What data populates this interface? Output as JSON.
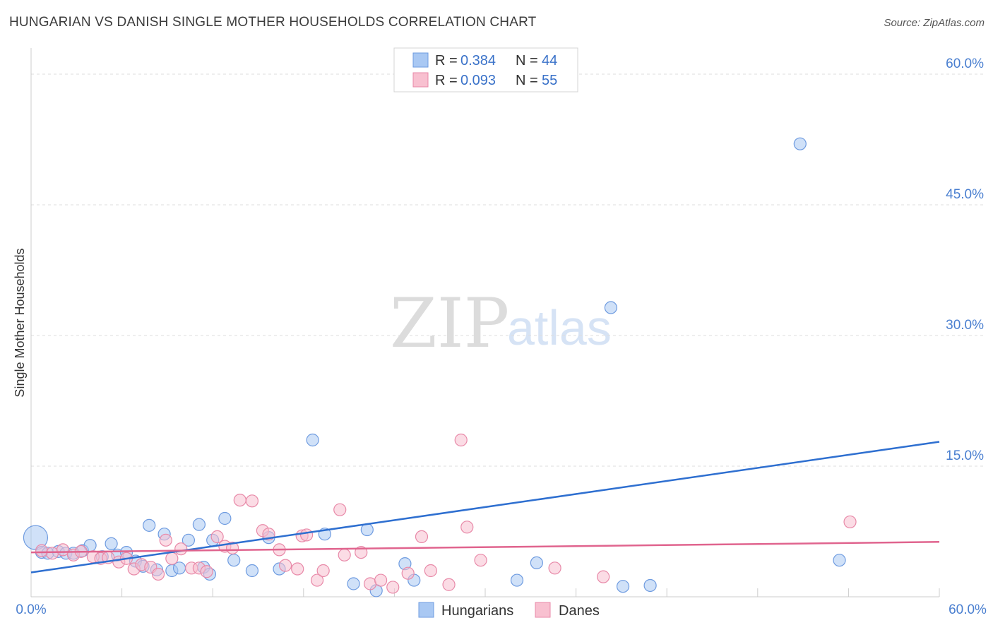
{
  "header": {
    "title": "HUNGARIAN VS DANISH SINGLE MOTHER HOUSEHOLDS CORRELATION CHART",
    "source": "Source: ZipAtlas.com"
  },
  "watermark": {
    "zip": "ZIP",
    "atlas": "atlas"
  },
  "legend_top": {
    "series": [
      {
        "r_label": "R =",
        "r_value": "0.384",
        "n_label": "N =",
        "n_value": "44",
        "color": "#a9c8f3",
        "stroke": "#6e9be0"
      },
      {
        "r_label": "R =",
        "r_value": "0.093",
        "n_label": "N =",
        "n_value": "55",
        "color": "#f8c0d0",
        "stroke": "#e889a8"
      }
    ]
  },
  "legend_bottom": {
    "items": [
      {
        "label": "Hungarians",
        "color": "#a9c8f3",
        "stroke": "#6e9be0"
      },
      {
        "label": "Danes",
        "color": "#f8c0d0",
        "stroke": "#e889a8"
      }
    ]
  },
  "chart_data": {
    "type": "scatter",
    "title": "HUNGARIAN VS DANISH SINGLE MOTHER HOUSEHOLDS CORRELATION CHART",
    "xlabel": "",
    "ylabel": "Single Mother Households",
    "xlim": [
      0,
      60
    ],
    "ylim": [
      0,
      63
    ],
    "x_tick_labels": [
      "0.0%",
      "60.0%"
    ],
    "y_ticks": [
      15,
      30,
      45,
      60
    ],
    "y_tick_labels": [
      "15.0%",
      "30.0%",
      "45.0%",
      "60.0%"
    ],
    "grid": true,
    "legend": "top-center",
    "series": [
      {
        "name": "Hungarians",
        "color": "#a9c8f3",
        "stroke": "#6e9be0",
        "line_color": "#2e6fd0",
        "trend": {
          "x": [
            0,
            60
          ],
          "y": [
            2.8,
            17.8
          ]
        },
        "points": [
          [
            0.3,
            6.8
          ],
          [
            0.7,
            5.1
          ],
          [
            1.1,
            5.0
          ],
          [
            1.8,
            5.2
          ],
          [
            2.3,
            5.0
          ],
          [
            2.8,
            5.0
          ],
          [
            3.4,
            5.3
          ],
          [
            3.9,
            5.9
          ],
          [
            4.7,
            4.6
          ],
          [
            5.3,
            6.1
          ],
          [
            5.7,
            4.8
          ],
          [
            6.3,
            5.1
          ],
          [
            6.9,
            4.1
          ],
          [
            7.4,
            3.5
          ],
          [
            7.8,
            8.2
          ],
          [
            8.3,
            3.1
          ],
          [
            8.8,
            7.2
          ],
          [
            9.3,
            3.0
          ],
          [
            9.8,
            3.3
          ],
          [
            10.4,
            6.5
          ],
          [
            11.1,
            8.3
          ],
          [
            11.4,
            3.4
          ],
          [
            11.8,
            2.6
          ],
          [
            12.0,
            6.5
          ],
          [
            12.8,
            9.0
          ],
          [
            13.4,
            4.2
          ],
          [
            14.6,
            3.0
          ],
          [
            15.7,
            6.8
          ],
          [
            16.4,
            3.2
          ],
          [
            18.6,
            18.0
          ],
          [
            19.4,
            7.2
          ],
          [
            21.3,
            1.5
          ],
          [
            22.2,
            7.7
          ],
          [
            22.8,
            0.7
          ],
          [
            24.7,
            3.8
          ],
          [
            25.3,
            1.9
          ],
          [
            32.1,
            1.9
          ],
          [
            33.4,
            3.9
          ],
          [
            38.3,
            33.2
          ],
          [
            39.1,
            1.2
          ],
          [
            40.9,
            1.3
          ],
          [
            50.8,
            52.0
          ],
          [
            53.4,
            4.2
          ]
        ]
      },
      {
        "name": "Danes",
        "color": "#f8c0d0",
        "stroke": "#e889a8",
        "line_color": "#e0648e",
        "trend": {
          "x": [
            0,
            60
          ],
          "y": [
            5.1,
            6.3
          ]
        },
        "points": [
          [
            0.7,
            5.3
          ],
          [
            1.4,
            5.0
          ],
          [
            2.1,
            5.4
          ],
          [
            2.8,
            4.8
          ],
          [
            3.3,
            5.2
          ],
          [
            4.1,
            4.6
          ],
          [
            4.6,
            4.4
          ],
          [
            5.1,
            4.5
          ],
          [
            5.8,
            4.0
          ],
          [
            6.3,
            4.4
          ],
          [
            6.8,
            3.2
          ],
          [
            7.3,
            3.7
          ],
          [
            7.9,
            3.4
          ],
          [
            8.4,
            2.6
          ],
          [
            8.9,
            6.5
          ],
          [
            9.3,
            4.4
          ],
          [
            9.9,
            5.5
          ],
          [
            10.6,
            3.3
          ],
          [
            11.1,
            3.3
          ],
          [
            11.6,
            2.9
          ],
          [
            12.3,
            6.9
          ],
          [
            12.8,
            5.8
          ],
          [
            13.3,
            5.6
          ],
          [
            13.8,
            11.1
          ],
          [
            14.6,
            11.0
          ],
          [
            15.3,
            7.6
          ],
          [
            15.7,
            7.2
          ],
          [
            16.4,
            5.4
          ],
          [
            16.8,
            3.6
          ],
          [
            17.6,
            3.2
          ],
          [
            17.9,
            7.0
          ],
          [
            18.2,
            7.1
          ],
          [
            18.9,
            1.9
          ],
          [
            19.3,
            3.0
          ],
          [
            20.4,
            10.0
          ],
          [
            20.7,
            4.8
          ],
          [
            21.8,
            5.1
          ],
          [
            22.4,
            1.5
          ],
          [
            23.1,
            1.9
          ],
          [
            23.9,
            1.1
          ],
          [
            24.9,
            2.7
          ],
          [
            25.8,
            6.9
          ],
          [
            26.4,
            3.0
          ],
          [
            27.6,
            1.4
          ],
          [
            28.4,
            18.0
          ],
          [
            28.8,
            8.0
          ],
          [
            29.7,
            4.2
          ],
          [
            34.6,
            3.3
          ],
          [
            37.8,
            2.3
          ],
          [
            54.1,
            8.6
          ]
        ]
      }
    ]
  }
}
